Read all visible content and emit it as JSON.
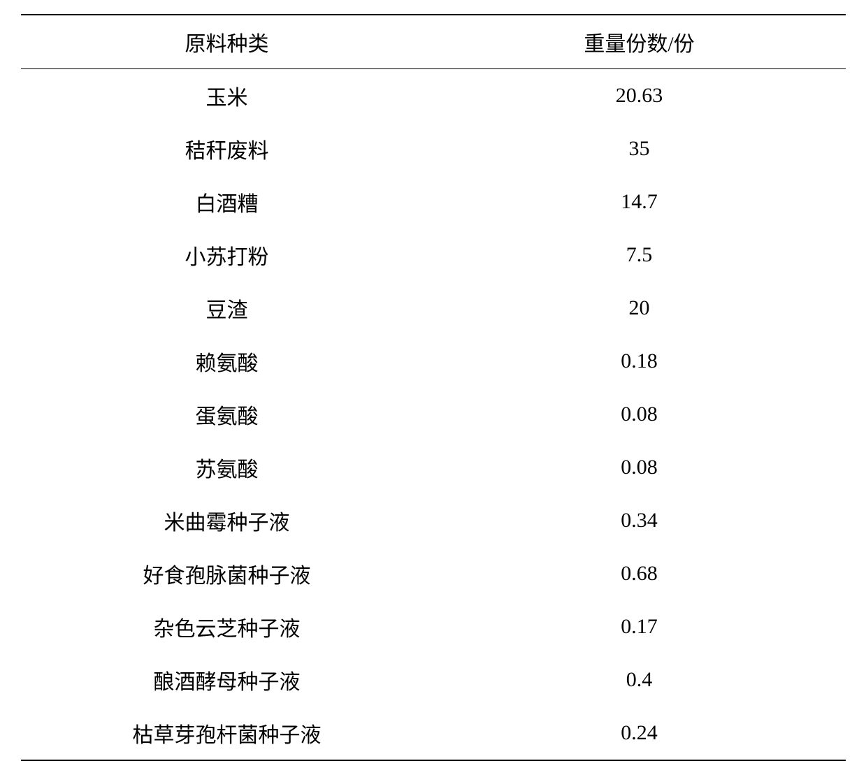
{
  "table": {
    "columns": [
      {
        "label": "原料种类",
        "width": "50%",
        "align": "center"
      },
      {
        "label": "重量份数/份",
        "width": "50%",
        "align": "center"
      }
    ],
    "rows": [
      [
        "玉米",
        "20.63"
      ],
      [
        "秸秆废料",
        "35"
      ],
      [
        "白酒糟",
        "14.7"
      ],
      [
        "小苏打粉",
        "7.5"
      ],
      [
        "豆渣",
        "20"
      ],
      [
        "赖氨酸",
        "0.18"
      ],
      [
        "蛋氨酸",
        "0.08"
      ],
      [
        "苏氨酸",
        "0.08"
      ],
      [
        "米曲霉种子液",
        "0.34"
      ],
      [
        "好食孢脉菌种子液",
        "0.68"
      ],
      [
        "杂色云芝种子液",
        "0.17"
      ],
      [
        "酿酒酵母种子液",
        "0.4"
      ],
      [
        "枯草芽孢杆菌种子液",
        "0.24"
      ]
    ],
    "styles": {
      "border_top_width": 2,
      "border_bottom_width": 2,
      "header_border_bottom_width": 1.5,
      "border_color": "#000000",
      "background_color": "#ffffff",
      "text_color": "#000000",
      "font_size": 30,
      "font_family": "SimSun",
      "cell_padding_vertical": 16,
      "cell_padding_horizontal": 10
    }
  }
}
